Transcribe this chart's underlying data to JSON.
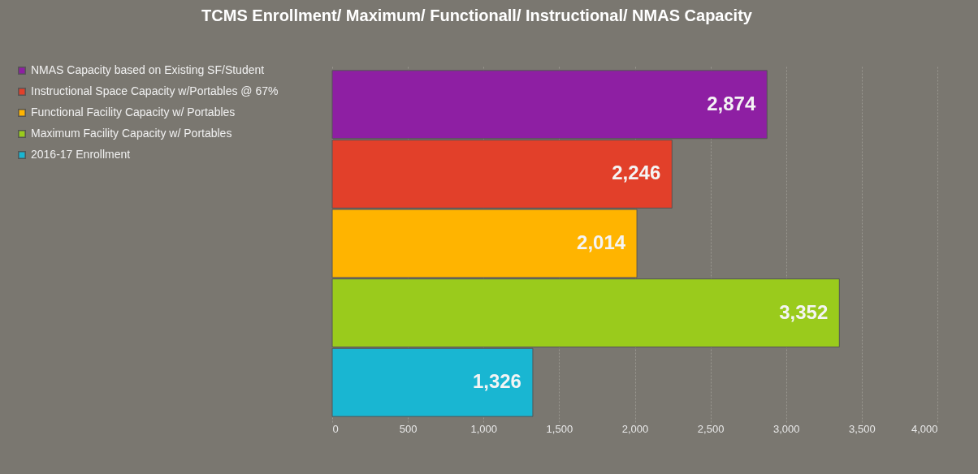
{
  "chart_data": {
    "type": "bar",
    "orientation": "horizontal",
    "title": "TCMS Enrollment/ Maximum/ Functionall/ Instructional/ NMAS Capacity",
    "categories": [
      null,
      null,
      null,
      null,
      null
    ],
    "series": [
      {
        "name": "NMAS Capacity based on Existing SF/Student",
        "color": "#8e1fa3",
        "values": [
          2874,
          null,
          null,
          null,
          null
        ],
        "value_labels": [
          "2,874",
          null,
          null,
          null,
          null
        ]
      },
      {
        "name": "Instructional Space Capacity w/Portables @ 67%",
        "color": "#e2402a",
        "values": [
          null,
          2246,
          null,
          null,
          null
        ],
        "value_labels": [
          null,
          "2,246",
          null,
          null,
          null
        ]
      },
      {
        "name": "Functional Facility Capacity w/ Portables",
        "color": "#ffb400",
        "values": [
          null,
          null,
          2014,
          null,
          null
        ],
        "value_labels": [
          null,
          null,
          "2,014",
          null,
          null
        ]
      },
      {
        "name": "Maximum Facility Capacity w/ Portables",
        "color": "#9acb1c",
        "values": [
          null,
          null,
          null,
          3352,
          null
        ],
        "value_labels": [
          null,
          null,
          null,
          "3,352",
          null
        ]
      },
      {
        "name": "2016-17 Enrollment",
        "color": "#19b6d2",
        "values": [
          null,
          null,
          null,
          null,
          1326
        ],
        "value_labels": [
          null,
          null,
          null,
          null,
          "1,326"
        ]
      }
    ],
    "xlim": [
      0,
      4000
    ],
    "xticks": [
      0,
      500,
      {
        "value": 1000,
        "label": "1,000"
      },
      {
        "value": 1500,
        "label": "1,500"
      },
      {
        "value": 2000,
        "label": "2,000"
      },
      {
        "value": 2500,
        "label": "2,500"
      },
      {
        "value": 3000,
        "label": "3,000"
      },
      {
        "value": 3500,
        "label": "3,500"
      },
      {
        "value": 4000,
        "label": "4,000"
      }
    ],
    "grid": "x",
    "legend": "left"
  }
}
